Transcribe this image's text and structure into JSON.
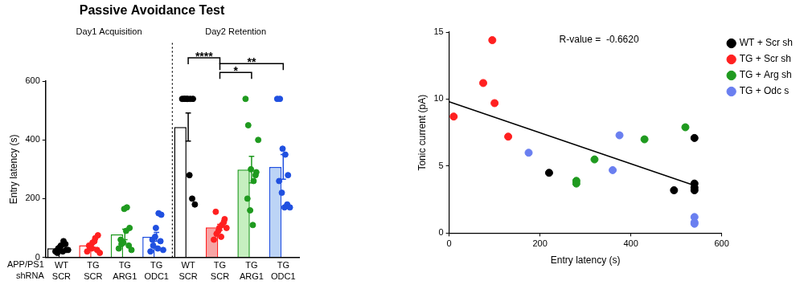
{
  "chart_data": [
    {
      "type": "bar",
      "title": "Passive Avoidance Test",
      "group_labels": [
        {
          "text": "Day1 Acquisition",
          "from": 0,
          "to": 3
        },
        {
          "text": "Day2 Retention",
          "from": 4,
          "to": 7
        }
      ],
      "row_labels": [
        "APP/PS1",
        "shRNA"
      ],
      "categories": [
        [
          "WT",
          "SCR"
        ],
        [
          "TG",
          "SCR"
        ],
        [
          "TG",
          "ARG1"
        ],
        [
          "TG",
          "ODC1"
        ],
        [
          "WT",
          "SCR"
        ],
        [
          "TG",
          "SCR"
        ],
        [
          "TG",
          "ARG1"
        ],
        [
          "TG",
          "ODC1"
        ]
      ],
      "y_label": "Entry latency (s)",
      "values": [
        31,
        41,
        78,
        70,
        444,
        102,
        299,
        308
      ],
      "errors": [
        5,
        7,
        18,
        15,
        48,
        10,
        45,
        42
      ],
      "colors": [
        "#000000",
        "#ff2020",
        "#1f9a1f",
        "#2050e0",
        "#000000",
        "#ff2020",
        "#1f9a1f",
        "#2050e0"
      ],
      "fill_colors": [
        "#ffffff",
        "#ffffff",
        "#ffffff",
        "#ffffff",
        "#ffffff",
        "#f6a5a5",
        "#c6efc0",
        "#bcd4f6"
      ],
      "points": [
        [
          20,
          30,
          40,
          55,
          25,
          15,
          35,
          20,
          45,
          25
        ],
        [
          20,
          35,
          50,
          65,
          75,
          40,
          30,
          55,
          25,
          15
        ],
        [
          30,
          45,
          165,
          170,
          100,
          60,
          50,
          90,
          40,
          25
        ],
        [
          20,
          40,
          100,
          150,
          145,
          60,
          70,
          30,
          55,
          25
        ],
        [
          540,
          540,
          540,
          540,
          540,
          540,
          540,
          280,
          200,
          180
        ],
        [
          60,
          80,
          100,
          110,
          130,
          155,
          90,
          70,
          120,
          100
        ],
        [
          540,
          450,
          300,
          260,
          290,
          200,
          160,
          110,
          280,
          400
        ],
        [
          540,
          540,
          370,
          350,
          280,
          260,
          220,
          170,
          180,
          170
        ]
      ],
      "ylim": [
        0,
        600
      ],
      "yticks": [
        0,
        200,
        400,
        600
      ],
      "significance": [
        {
          "from": 4,
          "to": 5,
          "y": 680,
          "text": "****"
        },
        {
          "from": 5,
          "to": 7,
          "y": 660,
          "text": "**"
        },
        {
          "from": 5,
          "to": 6,
          "y": 630,
          "text": "*"
        }
      ]
    },
    {
      "type": "scatter",
      "x_label": "Entry latency (s)",
      "y_label": "Tonic current (pA)",
      "annotation": "R-value =  -0.6620",
      "marker": "circle",
      "series": [
        {
          "name": "WT + Scr sh",
          "color": "#000000",
          "x": [
            220,
            495,
            540,
            540,
            540,
            540
          ],
          "y": [
            4.5,
            3.2,
            7.1,
            3.7,
            3.4,
            3.2
          ]
        },
        {
          "name": "TG + Scr sh",
          "color": "#ff2020",
          "x": [
            10,
            75,
            95,
            100,
            130
          ],
          "y": [
            8.7,
            11.2,
            14.4,
            9.7,
            7.2
          ]
        },
        {
          "name": "TG + Arg sh",
          "color": "#1f9a1f",
          "x": [
            280,
            280,
            320,
            430,
            520
          ],
          "y": [
            3.9,
            3.7,
            5.5,
            7.0,
            7.9
          ]
        },
        {
          "name": "TG + Odc s",
          "color": "#6a7ff0",
          "x": [
            175,
            360,
            375,
            540,
            540,
            540
          ],
          "y": [
            6.0,
            4.7,
            7.3,
            1.2,
            0.8,
            0.7
          ]
        }
      ],
      "trend_line": {
        "x": [
          0,
          545
        ],
        "y": [
          9.8,
          3.5
        ]
      },
      "xlim": [
        0,
        600
      ],
      "xticks": [
        0,
        200,
        400,
        600
      ],
      "ylim": [
        0,
        15
      ],
      "yticks": [
        0,
        5,
        10,
        15
      ],
      "legend": "right"
    }
  ]
}
